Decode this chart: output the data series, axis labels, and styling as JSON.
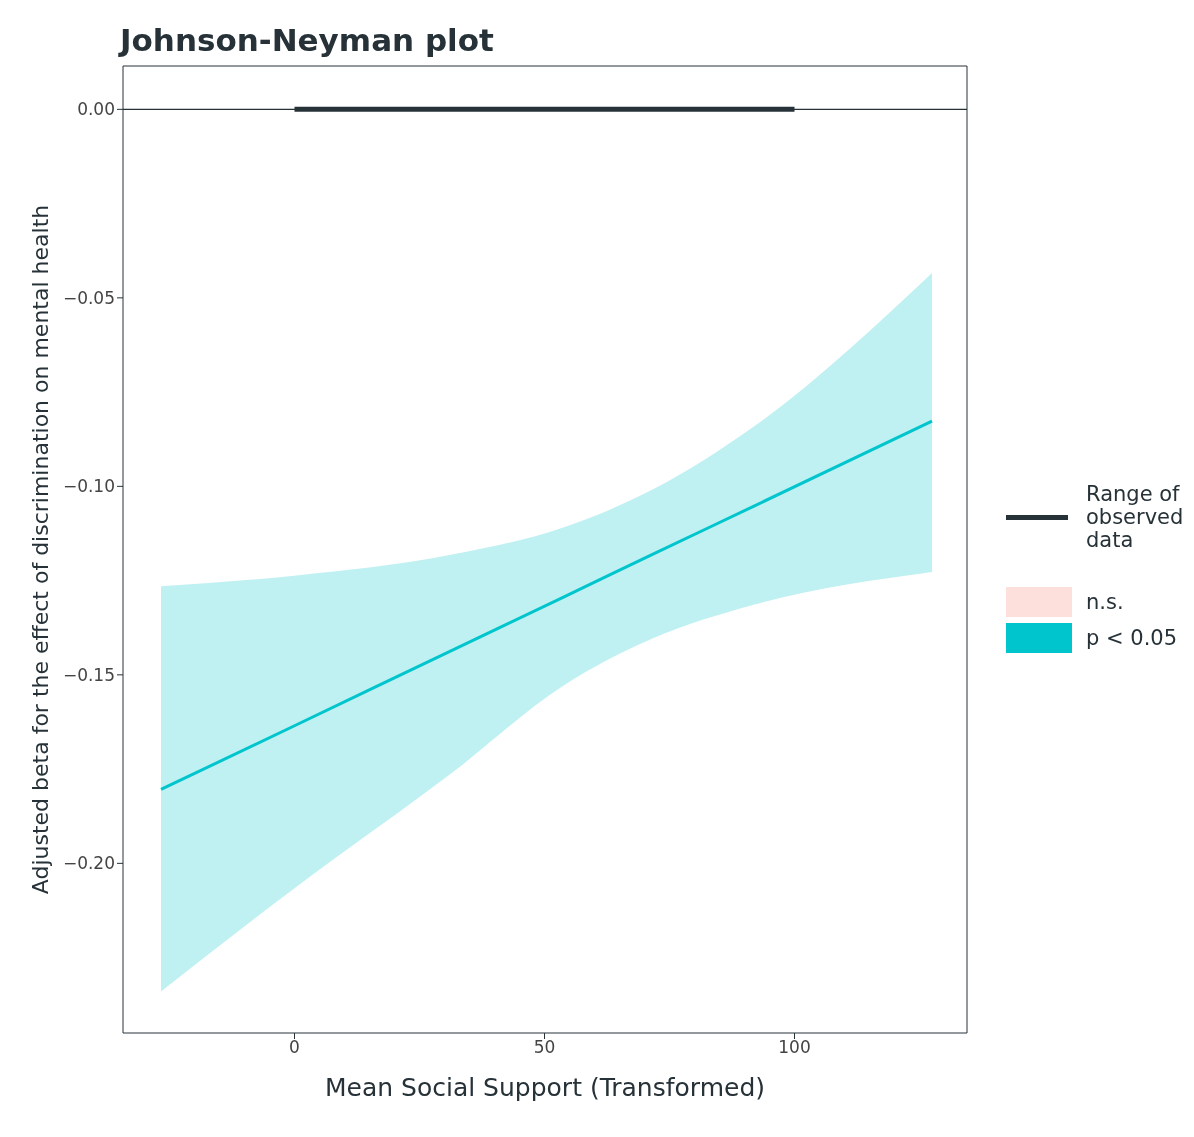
{
  "chart_data": {
    "type": "line",
    "title": "Johnson-Neyman plot",
    "xlabel": "Mean Social Support (Transformed)",
    "ylabel": "Adjusted beta for the effect of discrimination on mental health",
    "xlim": [
      -34.3,
      134.5
    ],
    "xticks": [
      0,
      50,
      100
    ],
    "ylim": [
      -0.245,
      0.0115
    ],
    "yticks": [
      {
        "value": 0,
        "label": "0.00"
      },
      {
        "value": -0.05,
        "label": "−0.05"
      },
      {
        "value": -0.1,
        "label": "−0.10"
      },
      {
        "value": -0.15,
        "label": "−0.15"
      },
      {
        "value": -0.2,
        "label": "−0.20"
      }
    ],
    "grid": false,
    "legend": "right",
    "marker": "none",
    "line_style": "solid",
    "ref_lines": [
      {
        "axis": "y",
        "value": 0,
        "label": null,
        "color": "#263238"
      }
    ],
    "series": [
      {
        "name": "Range of observed data",
        "color": "#263238",
        "x": [
          0,
          100
        ],
        "values": [
          0,
          0
        ]
      },
      {
        "name": "n.s.",
        "type": "area",
        "color": "#fde0dc"
      },
      {
        "name": "p < 0.05",
        "color": "#00c5cd",
        "x": [
          -26.7,
          0,
          31.5,
          53.6,
          71.7,
          91.8,
          127.5
        ],
        "values": [
          -0.1804,
          -0.1635,
          -0.1435,
          -0.1295,
          -0.118,
          -0.1053,
          -0.0827
        ],
        "lower": [
          -0.234,
          -0.2066,
          -0.176,
          -0.153,
          -0.1403,
          -0.1314,
          -0.1227
        ],
        "upper": [
          -0.1265,
          -0.1237,
          -0.1181,
          -0.111,
          -0.1008,
          -0.0842,
          -0.0434
        ]
      }
    ]
  }
}
